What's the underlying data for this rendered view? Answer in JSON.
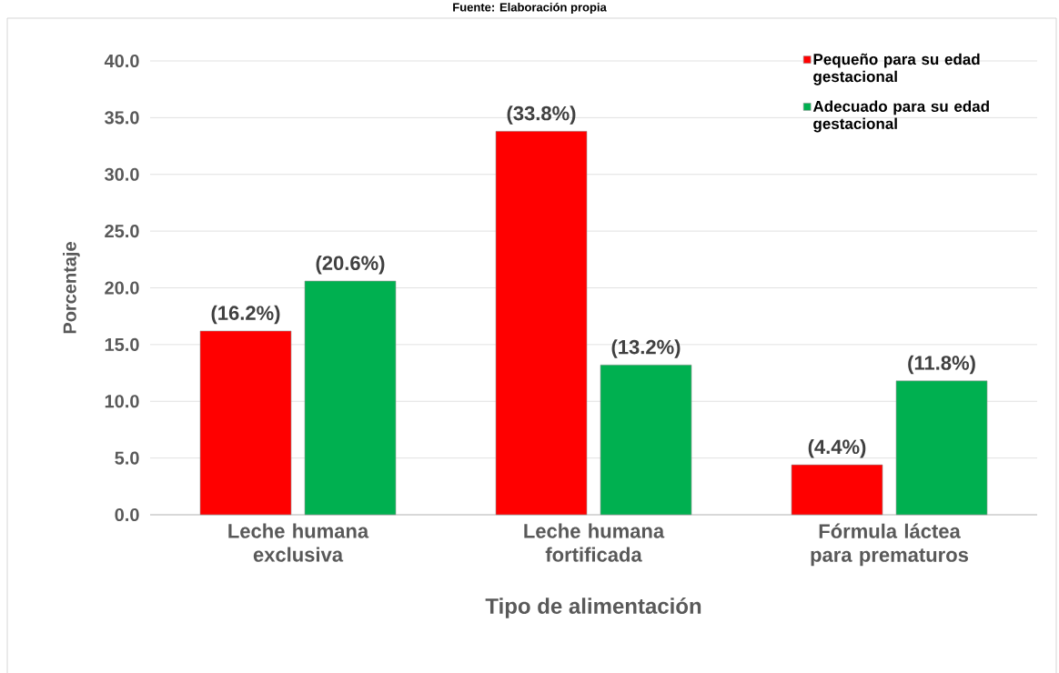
{
  "chart_data": {
    "type": "bar",
    "annotations": [
      "Fuente: Elaboración propia"
    ],
    "xlabel": "Tipo de alimentación",
    "ylabel": "Porcentaje",
    "categories": [
      "Leche humana exclusiva",
      "Leche humana fortificada",
      "Fórmula láctea para prematuros"
    ],
    "series": [
      {
        "name": "Pequeño para su edad gestacional",
        "color": "#ff0000",
        "values": [
          16.2,
          33.8,
          4.4
        ],
        "value_labels": [
          "(16.2%)",
          "(33.8%)",
          "(4.4%)"
        ]
      },
      {
        "name": "Adecuado para su edad gestacional",
        "color": "#00b050",
        "values": [
          20.6,
          13.2,
          11.8
        ],
        "value_labels": [
          "(20.6%)",
          "(13.2%)",
          "(11.8%)"
        ]
      }
    ],
    "ylim": [
      0,
      40
    ],
    "yticks": [
      {
        "value": 0,
        "label": "0.0"
      },
      {
        "value": 5,
        "label": "5.0"
      },
      {
        "value": 10,
        "label": "10.0"
      },
      {
        "value": 15,
        "label": "15.0"
      },
      {
        "value": 20,
        "label": "20.0"
      },
      {
        "value": 25,
        "label": "25.0"
      },
      {
        "value": 30,
        "label": "30.0"
      },
      {
        "value": 35,
        "label": "35.0"
      },
      {
        "value": 40,
        "label": "40.0"
      }
    ],
    "grid": "y",
    "legend": "top right"
  }
}
